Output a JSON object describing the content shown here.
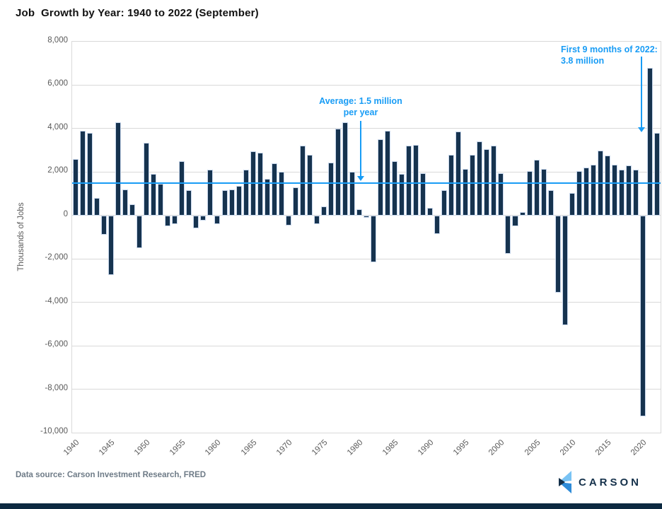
{
  "title": "Job  Growth by Year: 1940 to 2022 (September)",
  "y_axis": {
    "label": "Thousands of Jobs",
    "tick_values": [
      8000,
      6000,
      4000,
      2000,
      0,
      -2000,
      -4000,
      -6000,
      -8000,
      -10000
    ],
    "tick_labels": [
      "8,000",
      "6,000",
      "4,000",
      "2,000",
      "0",
      "-2,000",
      "-4,000",
      "-6,000",
      "-8,000",
      "-10,000"
    ]
  },
  "x_axis": {
    "tick_labels": [
      "1940",
      "1945",
      "1950",
      "1955",
      "1960",
      "1965",
      "1970",
      "1975",
      "1980",
      "1985",
      "1990",
      "1995",
      "2000",
      "2005",
      "2010",
      "2015",
      "2020"
    ]
  },
  "annotations": {
    "average": {
      "line1": "Average: 1.5 million",
      "line2": "per year"
    },
    "recent": {
      "line1": "First 9 months of 2022:",
      "line2": "3.8 million"
    }
  },
  "footer": {
    "source": "Data source: Carson Investment Research, FRED",
    "logo_text": "CARSON"
  },
  "colors": {
    "bar_fill": "#16334f",
    "bar_stroke": "#c8d7ec",
    "accent_blue": "#189cf5",
    "gridline": "#d9d9d9",
    "axis_text": "#595959",
    "footer_text": "#6e7b87",
    "footer_bar": "#0c2940",
    "logo_navy": "#14304a",
    "logo_light_blue": "#79c3f4",
    "logo_mid_blue": "#2e8bd8"
  },
  "chart_data": {
    "type": "bar",
    "title": "Job Growth by Year: 1940 to 2022 (September)",
    "xlabel": "",
    "ylabel": "Thousands of Jobs",
    "ylim": [
      -10000,
      8000
    ],
    "grid": true,
    "average_line_value": 1500,
    "years": [
      1940,
      1941,
      1942,
      1943,
      1944,
      1945,
      1946,
      1947,
      1948,
      1949,
      1950,
      1951,
      1952,
      1953,
      1954,
      1955,
      1956,
      1957,
      1958,
      1959,
      1960,
      1961,
      1962,
      1963,
      1964,
      1965,
      1966,
      1967,
      1968,
      1969,
      1970,
      1971,
      1972,
      1973,
      1974,
      1975,
      1976,
      1977,
      1978,
      1979,
      1980,
      1981,
      1982,
      1983,
      1984,
      1985,
      1986,
      1987,
      1988,
      1989,
      1990,
      1991,
      1992,
      1993,
      1994,
      1995,
      1996,
      1997,
      1998,
      1999,
      2000,
      2001,
      2002,
      2003,
      2004,
      2005,
      2006,
      2007,
      2008,
      2009,
      2010,
      2011,
      2012,
      2013,
      2014,
      2015,
      2016,
      2017,
      2018,
      2019,
      2020,
      2021,
      2022
    ],
    "values": [
      2600,
      3900,
      3800,
      800,
      -900,
      -2750,
      4300,
      1200,
      500,
      -1500,
      3350,
      1900,
      1450,
      -500,
      -400,
      2500,
      1150,
      -600,
      -250,
      2100,
      -400,
      1150,
      1200,
      1350,
      2100,
      2950,
      2900,
      1700,
      2400,
      2000,
      -450,
      1300,
      3200,
      2800,
      -400,
      400,
      2450,
      4000,
      4300,
      2000,
      300,
      -100,
      -2150,
      3500,
      3900,
      2500,
      1900,
      3200,
      3250,
      1950,
      350,
      -850,
      1150,
      2800,
      3850,
      2150,
      2800,
      3400,
      3050,
      3200,
      1950,
      -1750,
      -500,
      150,
      2050,
      2550,
      2150,
      1150,
      -3550,
      -5050,
      1050,
      2050,
      2200,
      2350,
      3000,
      2750,
      2350,
      2100,
      2300,
      2100,
      -9250,
      6800,
      3800
    ]
  }
}
